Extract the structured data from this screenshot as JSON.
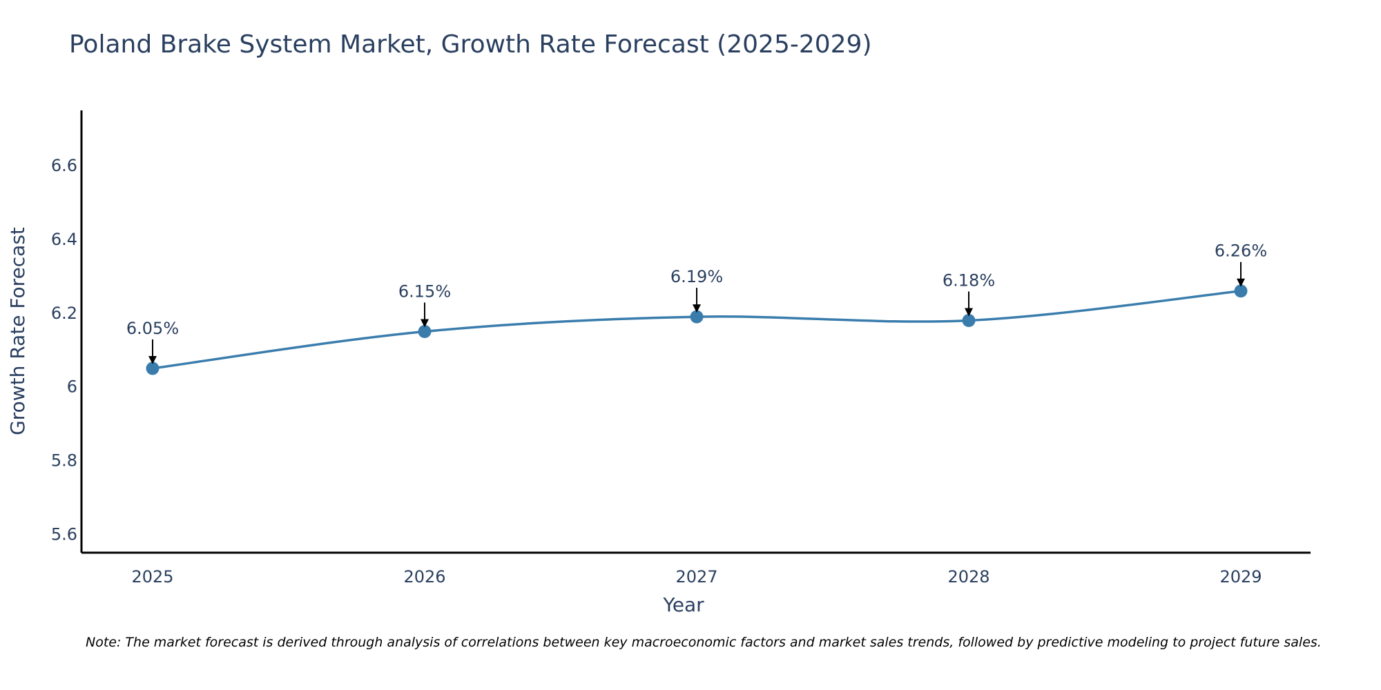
{
  "colors": {
    "line": "#3a7dad",
    "marker": "#3a7dad",
    "text": "#2a3f5f",
    "axis": "#000000",
    "arrow": "#000000"
  },
  "chart_data": {
    "type": "line",
    "title": "Poland Brake System Market, Growth Rate Forecast (2025-2029)",
    "xlabel": "Year",
    "ylabel": "Growth Rate Forecast",
    "x": [
      "2025",
      "2026",
      "2027",
      "2028",
      "2029"
    ],
    "values": [
      6.05,
      6.15,
      6.19,
      6.18,
      6.26
    ],
    "data_labels": [
      "6.05%",
      "6.15%",
      "6.19%",
      "6.18%",
      "6.26%"
    ],
    "ylim": [
      5.55,
      6.75
    ],
    "yticks": [
      5.6,
      5.8,
      6,
      6.2,
      6.4,
      6.6
    ],
    "ytick_labels": [
      "5.6",
      "5.8",
      "6",
      "6.2",
      "6.4",
      "6.6"
    ],
    "grid": false,
    "line_shape": "spline",
    "annotations": "arrow pointing to each data point with percentage label above"
  },
  "note": "Note: The market forecast is derived through analysis of correlations between key macroeconomic factors and market sales trends, followed by predictive modeling to project future sales."
}
